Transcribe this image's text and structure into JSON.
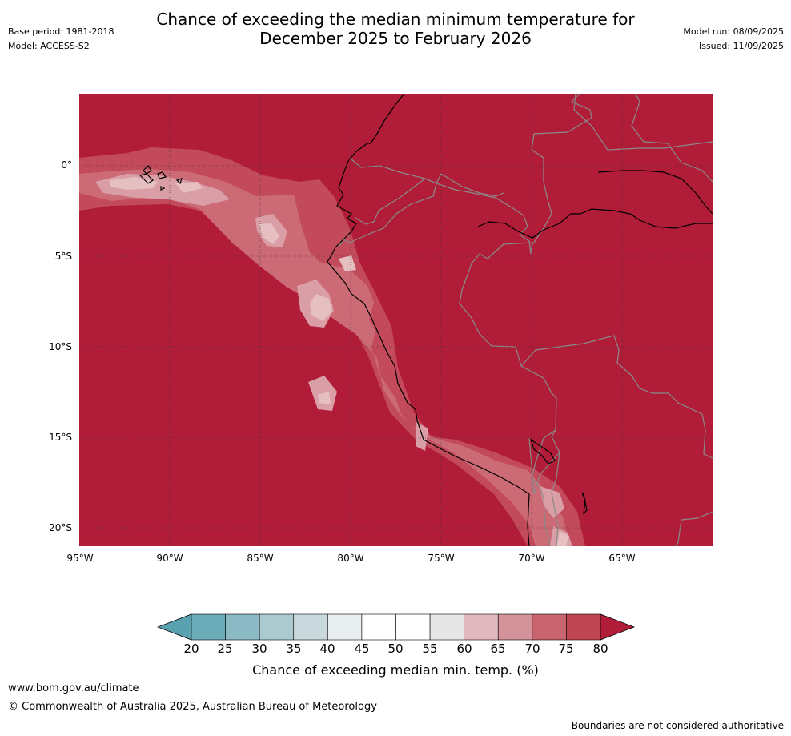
{
  "title_line1": "Chance of exceeding the median minimum temperature for",
  "title_line2": "December 2025 to February 2026",
  "base_period": "Base period: 1981-2018",
  "model": "Model: ACCESS-S2",
  "model_run": "Model run: 08/09/2025",
  "issued": "Issued: 11/09/2025",
  "map": {
    "lat_labels": [
      "0°",
      "5°S",
      "10°S",
      "15°S",
      "20°S"
    ],
    "lon_labels": [
      "95°W",
      "90°W",
      "85°W",
      "80°W",
      "75°W",
      "70°W",
      "65°W"
    ],
    "colors": {
      "c80": "#b11d39",
      "c75": "#c24a5a",
      "c70": "#cc6a76",
      "c65": "#d99ea6",
      "c60": "#e6bfc3",
      "coast": "#000000",
      "border": "#8a8a8a",
      "grid": "#333333"
    }
  },
  "colorbar": {
    "label": "Chance of exceeding median min. temp. (%)",
    "ticks": [
      "20",
      "25",
      "30",
      "35",
      "40",
      "45",
      "50",
      "55",
      "60",
      "65",
      "70",
      "75",
      "80"
    ],
    "colors": [
      "#6aacb8",
      "#8bbac4",
      "#aacad0",
      "#c8d8dc",
      "#e8eef0",
      "#ffffff",
      "#ffffff",
      "#e6e6e6",
      "#e0b8bd",
      "#d4929a",
      "#c8656f",
      "#be4551"
    ],
    "low_arrow_color": "#5aa2b0",
    "high_arrow_color": "#b11d39"
  },
  "footer": {
    "url": "www.bom.gov.au/climate",
    "copyright": "© Commonwealth of Australia 2025, Australian Bureau of Meteorology",
    "disclaimer": "Boundaries are not considered authoritative"
  }
}
